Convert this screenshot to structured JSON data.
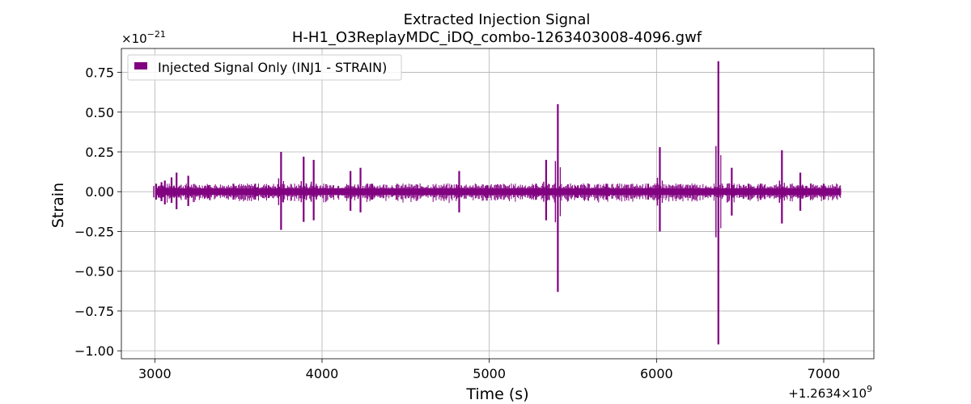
{
  "chart_data": {
    "type": "line",
    "title": "Extracted Injection Signal",
    "subtitle": "H-H1_O3ReplayMDC_iDQ_combo-1263403008-4096.gwf",
    "xlabel": "Time (s)",
    "ylabel": "Strain",
    "x_offset_label": "+1.2634×10",
    "x_offset_exponent": "9",
    "y_scale_label": "×10",
    "y_scale_exponent": "−21",
    "xlim": [
      2800,
      7300
    ],
    "ylim": [
      -1.05,
      0.9
    ],
    "x_ticks": [
      3000,
      4000,
      5000,
      6000,
      7000
    ],
    "x_tick_labels": [
      "3000",
      "4000",
      "5000",
      "6000",
      "7000"
    ],
    "y_ticks": [
      0.75,
      0.5,
      0.25,
      0.0,
      -0.25,
      -0.5,
      -0.75,
      -1.0
    ],
    "y_tick_labels": [
      "0.75",
      "0.50",
      "0.25",
      "0.00",
      "−0.25",
      "−0.50",
      "−0.75",
      "−1.00"
    ],
    "grid": true,
    "legend_position": "top-left",
    "series": [
      {
        "name": "Injected Signal Only (INJ1 - STRAIN)",
        "color": "#800080",
        "x_range": [
          3008,
          7104
        ],
        "baseline_amplitude": 0.02,
        "bursts": [
          {
            "t": 3008,
            "max": 0.05,
            "min": -0.05
          },
          {
            "t": 3040,
            "max": 0.06,
            "min": -0.06
          },
          {
            "t": 3060,
            "max": 0.07,
            "min": -0.08
          },
          {
            "t": 3100,
            "max": 0.09,
            "min": -0.07
          },
          {
            "t": 3130,
            "max": 0.12,
            "min": -0.11
          },
          {
            "t": 3200,
            "max": 0.1,
            "min": -0.09
          },
          {
            "t": 3320,
            "max": 0.04,
            "min": -0.04
          },
          {
            "t": 3470,
            "max": 0.05,
            "min": -0.05
          },
          {
            "t": 3600,
            "max": 0.05,
            "min": -0.05
          },
          {
            "t": 3680,
            "max": 0.04,
            "min": -0.04
          },
          {
            "t": 3755,
            "max": 0.25,
            "min": -0.24
          },
          {
            "t": 3890,
            "max": 0.22,
            "min": -0.19
          },
          {
            "t": 3950,
            "max": 0.2,
            "min": -0.18
          },
          {
            "t": 4170,
            "max": 0.13,
            "min": -0.12
          },
          {
            "t": 4230,
            "max": 0.15,
            "min": -0.13
          },
          {
            "t": 4300,
            "max": 0.05,
            "min": -0.05
          },
          {
            "t": 4820,
            "max": 0.13,
            "min": -0.13
          },
          {
            "t": 4990,
            "max": 0.04,
            "min": -0.04
          },
          {
            "t": 5280,
            "max": 0.05,
            "min": -0.05
          },
          {
            "t": 5340,
            "max": 0.2,
            "min": -0.18
          },
          {
            "t": 5410,
            "max": 0.55,
            "min": -0.63
          },
          {
            "t": 5530,
            "max": 0.04,
            "min": -0.04
          },
          {
            "t": 5700,
            "max": 0.05,
            "min": -0.05
          },
          {
            "t": 5950,
            "max": 0.05,
            "min": -0.05
          },
          {
            "t": 6020,
            "max": 0.28,
            "min": -0.25
          },
          {
            "t": 6200,
            "max": 0.04,
            "min": -0.04
          },
          {
            "t": 6370,
            "max": 0.82,
            "min": -0.96
          },
          {
            "t": 6450,
            "max": 0.15,
            "min": -0.15
          },
          {
            "t": 6550,
            "max": 0.05,
            "min": -0.05
          },
          {
            "t": 6620,
            "max": 0.04,
            "min": -0.04
          },
          {
            "t": 6750,
            "max": 0.26,
            "min": -0.2
          },
          {
            "t": 6860,
            "max": 0.12,
            "min": -0.12
          },
          {
            "t": 7000,
            "max": 0.05,
            "min": -0.05
          }
        ]
      }
    ]
  }
}
